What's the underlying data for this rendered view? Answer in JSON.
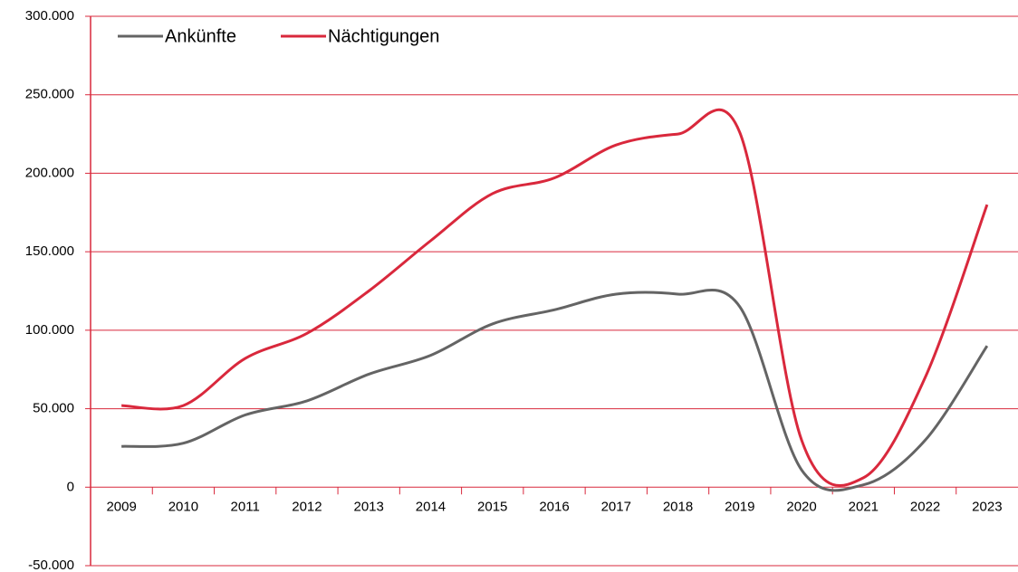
{
  "chart_data": {
    "type": "line",
    "categories": [
      "2009",
      "2010",
      "2011",
      "2012",
      "2013",
      "2014",
      "2015",
      "2016",
      "2017",
      "2018",
      "2019",
      "2020",
      "2021",
      "2022",
      "2023"
    ],
    "series": [
      {
        "name": "Ankünfte",
        "color": "#646464",
        "values": [
          26000,
          28000,
          46000,
          55000,
          72000,
          84000,
          104000,
          113000,
          123000,
          123000,
          115000,
          11000,
          1500,
          30000,
          90000
        ]
      },
      {
        "name": "Nächtigungen",
        "color": "#d9283c",
        "values": [
          52000,
          52000,
          82000,
          98000,
          125000,
          157000,
          187000,
          197000,
          218000,
          225000,
          226000,
          30000,
          6000,
          70000,
          180000
        ]
      }
    ],
    "ylim": [
      -50000,
      300000
    ],
    "yticks": [
      {
        "value": -50000,
        "label": "-50.000"
      },
      0,
      {
        "value": 50000,
        "label": "50.000"
      },
      {
        "value": 100000,
        "label": "100.000"
      },
      {
        "value": 150000,
        "label": "150.000"
      },
      {
        "value": 200000,
        "label": "200.000"
      },
      {
        "value": 250000,
        "label": "250.000"
      },
      {
        "value": 300000,
        "label": "300.000"
      }
    ],
    "grid": true,
    "grid_color": "#d9283c",
    "legend": "top-left"
  }
}
